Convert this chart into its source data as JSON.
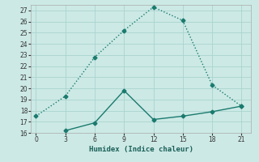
{
  "xlabel": "Humidex (Indice chaleur)",
  "line1_x": [
    0,
    3,
    6,
    9,
    12,
    15,
    18,
    21
  ],
  "line1_y": [
    17.5,
    19.3,
    22.8,
    25.2,
    27.3,
    26.1,
    20.3,
    18.4
  ],
  "line2_x": [
    3,
    6,
    9,
    12,
    15,
    18,
    21
  ],
  "line2_y": [
    16.2,
    16.9,
    19.8,
    17.2,
    17.5,
    17.9,
    18.4
  ],
  "line_color": "#1a7a6e",
  "bg_color": "#cce9e5",
  "grid_color": "#aad4cf",
  "xlim": [
    -0.5,
    22
  ],
  "ylim": [
    16,
    27.5
  ],
  "xticks": [
    0,
    3,
    6,
    9,
    12,
    15,
    18,
    21
  ],
  "yticks": [
    16,
    17,
    18,
    19,
    20,
    21,
    22,
    23,
    24,
    25,
    26,
    27
  ],
  "marker": "D",
  "markersize": 2.5,
  "linewidth": 1.0
}
